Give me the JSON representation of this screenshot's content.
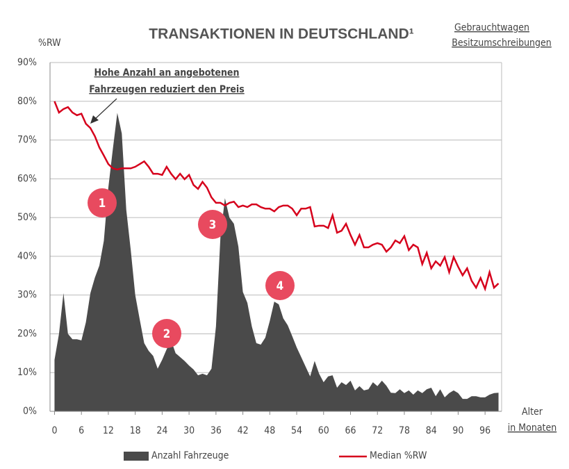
{
  "chart_data": {
    "type": "area_line",
    "title": "TRANSAKTIONEN IN DEUTSCHLAND¹",
    "subtitle": [
      "Gebrauchtwagen",
      "Besitzumschreibungen"
    ],
    "y_label": "%RW",
    "x_label": [
      "Alter",
      "in Monaten"
    ],
    "annotation": [
      "Hohe Anzahl an angebotenen",
      "Fahrzeugen reduziert den Preis"
    ],
    "markers": [
      "1",
      "2",
      "3",
      "4"
    ],
    "x": [
      0,
      1,
      2,
      3,
      4,
      5,
      6,
      7,
      8,
      9,
      10,
      11,
      12,
      13,
      14,
      15,
      16,
      17,
      18,
      19,
      20,
      21,
      22,
      23,
      24,
      25,
      26,
      27,
      28,
      29,
      30,
      31,
      32,
      33,
      34,
      35,
      36,
      37,
      38,
      39,
      40,
      41,
      42,
      43,
      44,
      45,
      46,
      47,
      48,
      49,
      50,
      51,
      52,
      53,
      54,
      55,
      56,
      57,
      58,
      59,
      60,
      61,
      62,
      63,
      64,
      65,
      66,
      67,
      68,
      69,
      70,
      71,
      72,
      73,
      74,
      75,
      76,
      77,
      78,
      79,
      80,
      81,
      82,
      83,
      84,
      85,
      86,
      87,
      88,
      89,
      90,
      91,
      92,
      93,
      94,
      95,
      96,
      97,
      98,
      99
    ],
    "series": [
      {
        "name": "Anzahl Fahrzeuge",
        "color": "#4a4a4a",
        "kind": "area",
        "values": [
          13.3,
          20,
          30.5,
          20,
          18.6,
          18.6,
          18.3,
          23,
          30.5,
          34.5,
          37.6,
          44,
          57.7,
          67.6,
          77,
          71.7,
          52,
          41.6,
          30,
          23.7,
          17.6,
          15.6,
          14.3,
          11,
          13.3,
          16,
          18.3,
          15,
          14,
          13,
          11.8,
          10.8,
          9.3,
          9.7,
          9.3,
          11,
          21.9,
          45,
          55,
          50,
          48.4,
          42.5,
          30.8,
          28,
          21.9,
          17.6,
          17.2,
          19,
          23.3,
          28.3,
          27.6,
          24,
          22.2,
          19.4,
          16.5,
          14,
          11.5,
          9,
          13,
          9.7,
          7.5,
          9,
          9.3,
          6.1,
          7.5,
          6.8,
          7.9,
          5.4,
          6.5,
          5.4,
          5.7,
          7.5,
          6.5,
          7.9,
          6.6,
          4.8,
          4.7,
          5.7,
          4.7,
          5.4,
          4.3,
          5.4,
          4.7,
          5.7,
          6.1,
          3.9,
          5.7,
          3.6,
          4.7,
          5.4,
          4.7,
          3.2,
          3.2,
          3.9,
          3.9,
          3.6,
          3.6,
          4.3,
          4.7,
          4.8
        ]
      },
      {
        "name": "Median %RW",
        "color": "#d6001c",
        "kind": "line",
        "values": [
          80,
          77.1,
          78,
          78.5,
          77.1,
          76.4,
          76.8,
          74.2,
          73.1,
          71,
          68.1,
          66,
          63.8,
          62.7,
          62.4,
          62.7,
          62.7,
          62.7,
          63.1,
          63.8,
          64.5,
          63.1,
          61.3,
          61.3,
          61,
          63.1,
          61.3,
          59.9,
          61.3,
          59.9,
          61,
          58.4,
          57.4,
          59.2,
          57.7,
          55.2,
          53.8,
          53.8,
          53.1,
          53.8,
          54.1,
          52.7,
          53.1,
          52.7,
          53.4,
          53.4,
          52.7,
          52.3,
          52.3,
          51.6,
          52.7,
          53.1,
          53.1,
          52.3,
          50.6,
          52.3,
          52.3,
          52.7,
          47.7,
          47.9,
          47.9,
          47.3,
          50.6,
          46.1,
          46.6,
          48.4,
          45.5,
          43,
          45.5,
          42.3,
          42.3,
          43,
          43.4,
          43,
          41.2,
          42.3,
          44.1,
          43.4,
          45.2,
          41.6,
          43,
          42.3,
          38,
          40.9,
          36.9,
          38.7,
          37.6,
          39.8,
          35.9,
          39.8,
          37.3,
          35.1,
          36.9,
          33.7,
          31.9,
          34.4,
          31.6,
          35.9,
          31.9,
          33
        ]
      }
    ],
    "xlim": [
      -1,
      100
    ],
    "xticks": [
      0,
      6,
      12,
      18,
      24,
      30,
      36,
      42,
      48,
      54,
      60,
      66,
      72,
      78,
      84,
      90,
      96
    ],
    "ylim": [
      0,
      90
    ],
    "yticks": [
      {
        "value": 0,
        "label": "0%"
      },
      {
        "value": 10,
        "label": "10%"
      },
      {
        "value": 20,
        "label": "20%"
      },
      {
        "value": 30,
        "label": "30%"
      },
      {
        "value": 40,
        "label": "40%"
      },
      {
        "value": 50,
        "label": "50%"
      },
      {
        "value": 60,
        "label": "60%"
      },
      {
        "value": 70,
        "label": "70%"
      },
      {
        "value": 80,
        "label": "80%"
      },
      {
        "value": 90,
        "label": "90%"
      }
    ],
    "grid": true
  }
}
